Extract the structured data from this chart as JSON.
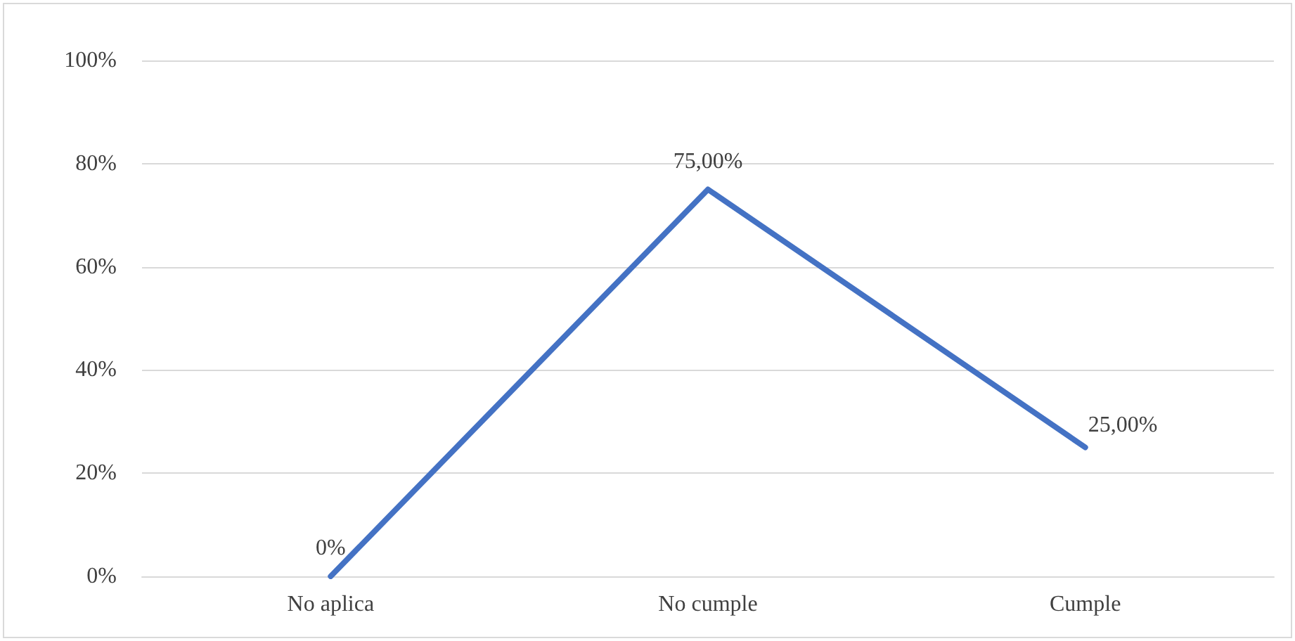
{
  "chart_data": {
    "type": "line",
    "categories": [
      "No aplica",
      "No cumple",
      "Cumple"
    ],
    "series": [
      {
        "color": "#4472c4",
        "values": [
          0,
          75,
          25
        ],
        "value_labels": [
          "0%",
          "75,00%",
          "25,00%"
        ]
      }
    ],
    "ylim": [
      0,
      100
    ],
    "yticks": [
      {
        "value": 0,
        "label": "0%"
      },
      {
        "value": 20,
        "label": "20%"
      },
      {
        "value": 40,
        "label": "40%"
      },
      {
        "value": 60,
        "label": "60%"
      },
      {
        "value": 80,
        "label": "80%"
      },
      {
        "value": 100,
        "label": "100%"
      }
    ],
    "grid": "y",
    "marker": "none",
    "line_style": "solid"
  }
}
